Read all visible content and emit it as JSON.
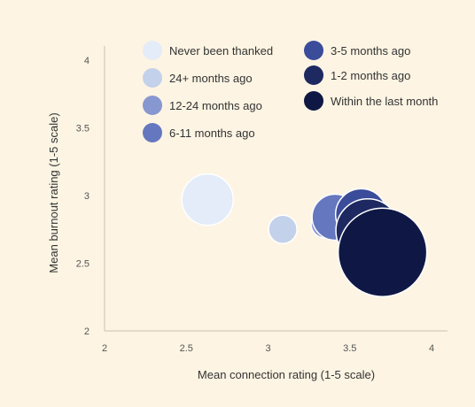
{
  "chart_data": {
    "type": "scatter",
    "subtype": "bubble",
    "xlabel": "Mean connection rating (1-5 scale)",
    "ylabel": "Mean burnout rating (1-5 scale)",
    "xlim": [
      2,
      4
    ],
    "ylim": [
      2,
      4
    ],
    "x_ticks": [
      "2",
      "2.5",
      "3",
      "3.5",
      "4"
    ],
    "y_ticks": [
      "2",
      "2.5",
      "3",
      "3.5",
      "4"
    ],
    "grid": false,
    "legend_position": "top",
    "series": [
      {
        "name": "Never been thanked",
        "x": 2.63,
        "y": 2.97,
        "size": 2.9,
        "color": "#e3ecf8"
      },
      {
        "name": "24+ months ago",
        "x": 3.09,
        "y": 2.75,
        "size": 1.6,
        "color": "#c3d1ea"
      },
      {
        "name": "12-24 months ago",
        "x": 3.35,
        "y": 2.79,
        "size": 1.6,
        "color": "#8797d0"
      },
      {
        "name": "6-11 months ago",
        "x": 3.41,
        "y": 2.84,
        "size": 2.6,
        "color": "#6577bf"
      },
      {
        "name": "3-5 months ago",
        "x": 3.57,
        "y": 2.86,
        "size": 2.9,
        "color": "#3a4c9a"
      },
      {
        "name": "1-2 months ago",
        "x": 3.61,
        "y": 2.74,
        "size": 3.6,
        "color": "#1d2960"
      },
      {
        "name": "Within the last month",
        "x": 3.7,
        "y": 2.58,
        "size": 5.0,
        "color": "#0f1845"
      }
    ]
  }
}
